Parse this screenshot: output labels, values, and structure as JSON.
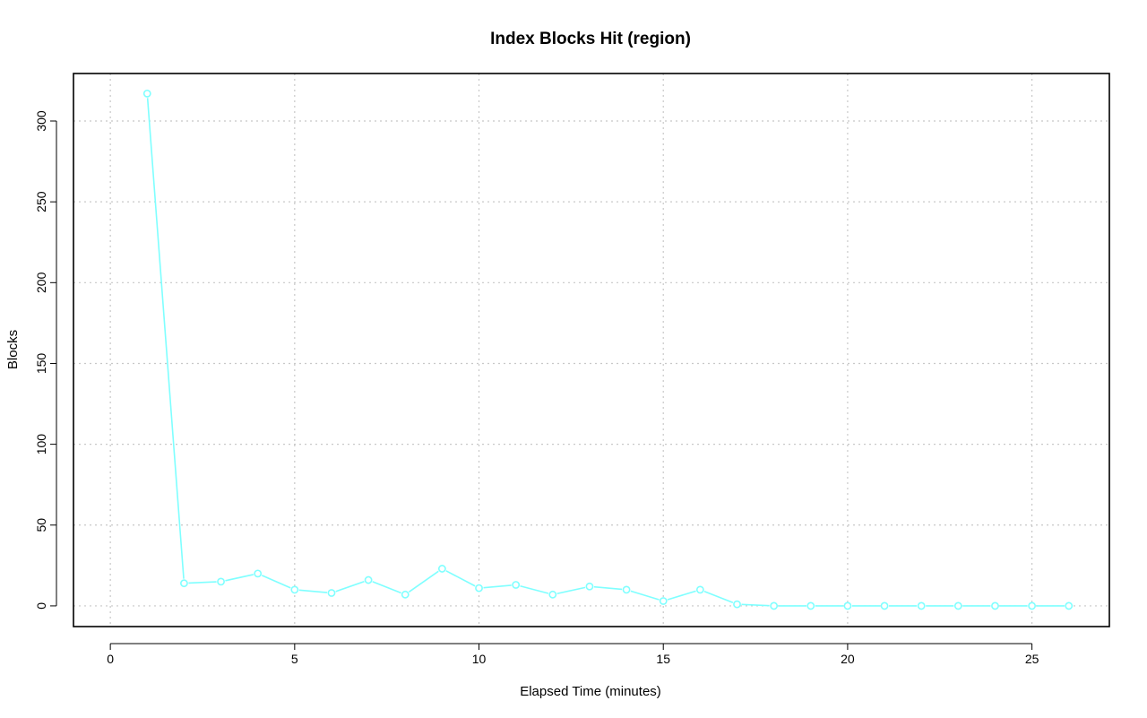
{
  "chart_data": {
    "type": "line",
    "title": "Index Blocks Hit (region)",
    "xlabel": "Elapsed Time (minutes)",
    "ylabel": "Blocks",
    "xlim": [
      -1,
      27.1
    ],
    "ylim": [
      -12.8,
      329.4
    ],
    "x_ticks": [
      0,
      5,
      10,
      15,
      20,
      25
    ],
    "y_ticks": [
      0,
      50,
      100,
      150,
      200,
      250,
      300
    ],
    "grid": true,
    "series": [
      {
        "color": "#7fffff",
        "marker": "circle",
        "x": [
          1,
          2,
          3,
          4,
          5,
          6,
          7,
          8,
          9,
          10,
          11,
          12,
          13,
          14,
          15,
          16,
          17,
          18,
          19,
          20,
          21,
          22,
          23,
          24,
          25,
          26
        ],
        "y": [
          317,
          14,
          15,
          20,
          10,
          8,
          16,
          7,
          23,
          11,
          13,
          7,
          12,
          10,
          3,
          10,
          1,
          0,
          0,
          0,
          0,
          0,
          0,
          0,
          0,
          0
        ]
      }
    ]
  }
}
